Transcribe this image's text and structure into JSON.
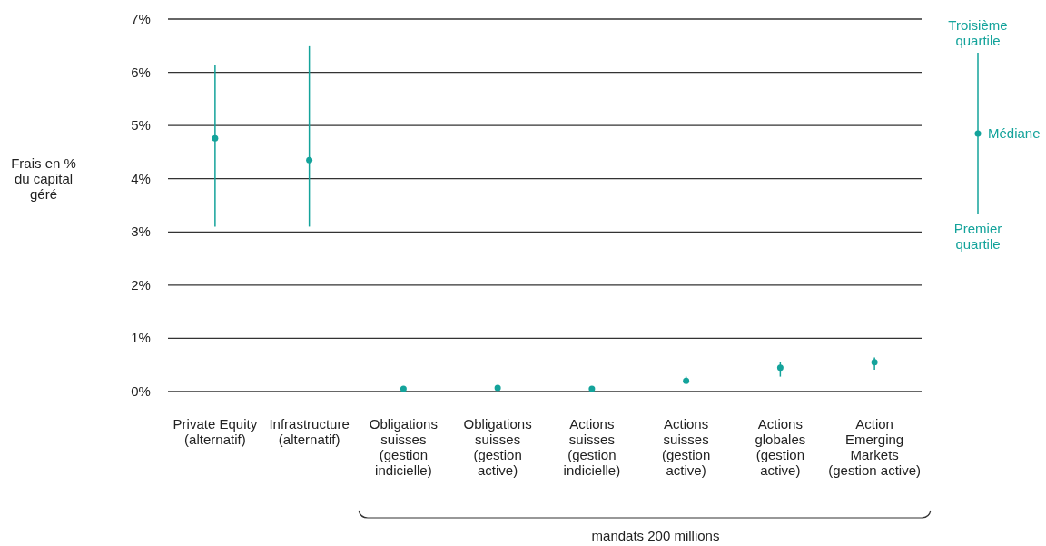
{
  "chart_data": {
    "type": "scatter",
    "ylabel": "Frais en %\ndu capital\ngéré",
    "categories": [
      "Private Equity\n(alternatif)",
      "Infrastructure\n(alternatif)",
      "Obligations\nsuisses\n(gestion\nindicielle)",
      "Obligations\nsuisses\n(gestion\nactive)",
      "Actions\nsuisses\n(gestion\nindicielle)",
      "Actions\nsuisses\n(gestion\nactive)",
      "Actions\nglobales\n(gestion\nactive)",
      "Action\nEmerging\nMarkets\n(gestion active)"
    ],
    "series": [
      {
        "color": "#14a39b",
        "values": [
          4.76,
          4.35,
          0.05,
          0.07,
          0.05,
          0.2,
          0.45,
          0.55
        ],
        "errors": [
          [
            3.1,
            6.13
          ],
          [
            3.1,
            6.49
          ],
          null,
          null,
          null,
          [
            0.15,
            0.28
          ],
          [
            0.28,
            0.55
          ],
          [
            0.41,
            0.64
          ]
        ]
      }
    ],
    "ylim": [
      0,
      7
    ],
    "yticks": [
      {
        "value": 0,
        "label": "0%"
      },
      {
        "value": 1,
        "label": "1%"
      },
      {
        "value": 2,
        "label": "2%"
      },
      {
        "value": 3,
        "label": "3%"
      },
      {
        "value": 4,
        "label": "4%"
      },
      {
        "value": 5,
        "label": "5%"
      },
      {
        "value": 6,
        "label": "6%"
      },
      {
        "value": 7,
        "label": "7%"
      }
    ],
    "grid": "y",
    "marker": "circle",
    "annotations": [
      "Troisième\nquartile",
      "Médiane",
      "Premier\nquartile",
      "mandats 200 millions"
    ]
  }
}
